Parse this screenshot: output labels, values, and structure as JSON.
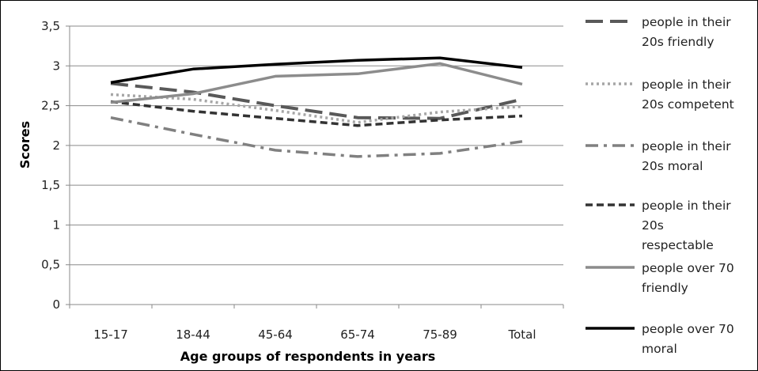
{
  "chart_data": {
    "type": "line",
    "title": "",
    "xlabel": "Age groups of respondents in years",
    "ylabel": "Scores",
    "categories": [
      "15-17",
      "18-44",
      "45-64",
      "65-74",
      "75-89",
      "Total"
    ],
    "ylim": [
      0,
      3.5
    ],
    "yticks": [
      "0",
      "0,5",
      "1",
      "1,5",
      "2",
      "2,5",
      "3",
      "3,5"
    ],
    "grid": true,
    "legend_position": "right",
    "series": [
      {
        "name": "people in their 20s friendly",
        "legend_lines": [
          "people in their",
          "20s friendly"
        ],
        "values": [
          2.78,
          2.67,
          2.5,
          2.35,
          2.34,
          2.58
        ],
        "color": "#595959",
        "style": "long-dash"
      },
      {
        "name": "people in their 20s competent",
        "legend_lines": [
          "people in their",
          "20s competent"
        ],
        "values": [
          2.64,
          2.58,
          2.44,
          2.29,
          2.42,
          2.49
        ],
        "color": "#a6a6a6",
        "style": "dot"
      },
      {
        "name": "people in their 20s moral",
        "legend_lines": [
          "people in their",
          "20s moral"
        ],
        "values": [
          2.35,
          2.14,
          1.94,
          1.86,
          1.9,
          2.05
        ],
        "color": "#808080",
        "style": "dash-dot"
      },
      {
        "name": "people in their 20s respectable",
        "legend_lines": [
          "people in their",
          "20s",
          "respectable"
        ],
        "values": [
          2.55,
          2.43,
          2.34,
          2.25,
          2.32,
          2.37
        ],
        "color": "#333333",
        "style": "dash"
      },
      {
        "name": "people over 70 friendly",
        "legend_lines": [
          "people over 70",
          "friendly"
        ],
        "values": [
          2.54,
          2.65,
          2.87,
          2.9,
          3.03,
          2.77
        ],
        "color": "#8c8c8c",
        "style": "solid"
      },
      {
        "name": "people over 70 moral",
        "legend_lines": [
          "people over 70",
          "moral"
        ],
        "values": [
          2.79,
          2.96,
          3.02,
          3.07,
          3.1,
          2.98
        ],
        "color": "#000000",
        "style": "solid"
      }
    ]
  }
}
